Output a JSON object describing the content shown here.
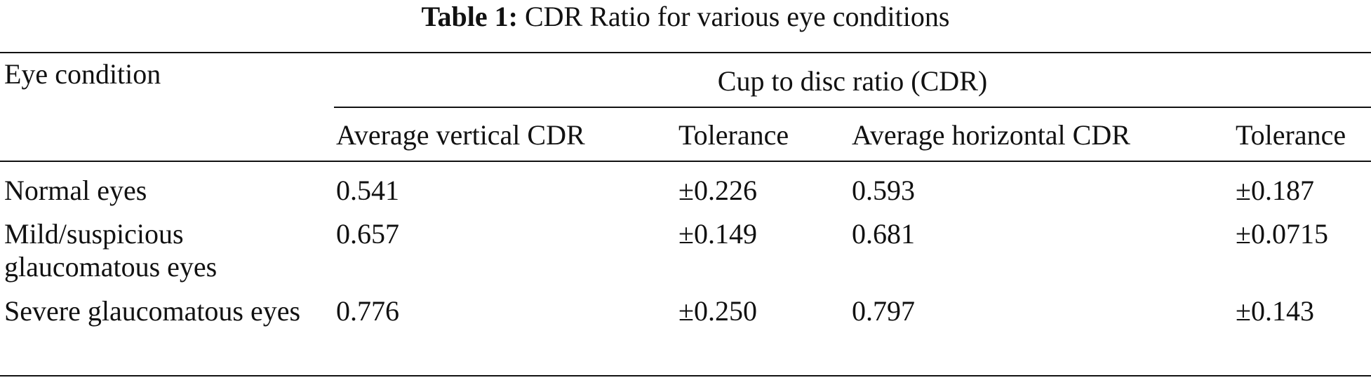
{
  "caption": {
    "label": "Table 1:",
    "text": "CDR Ratio for various eye conditions"
  },
  "table": {
    "row_header": "Eye condition",
    "group_header": "Cup to disc ratio (CDR)",
    "columns": [
      "Average vertical CDR",
      "Tolerance",
      "Average horizontal CDR",
      "Tolerance"
    ],
    "rows": [
      {
        "condition": "Normal eyes",
        "avg_vertical": "0.541",
        "tol_vertical": "±0.226",
        "avg_horizontal": "0.593",
        "tol_horizontal": "±0.187"
      },
      {
        "condition": "Mild/suspicious glaucomatous eyes",
        "avg_vertical": "0.657",
        "tol_vertical": "±0.149",
        "avg_horizontal": "0.681",
        "tol_horizontal": "±0.0715"
      },
      {
        "condition": "Severe glaucomatous eyes",
        "avg_vertical": "0.776",
        "tol_vertical": "±0.250",
        "avg_horizontal": "0.797",
        "tol_horizontal": "±0.143"
      }
    ]
  }
}
